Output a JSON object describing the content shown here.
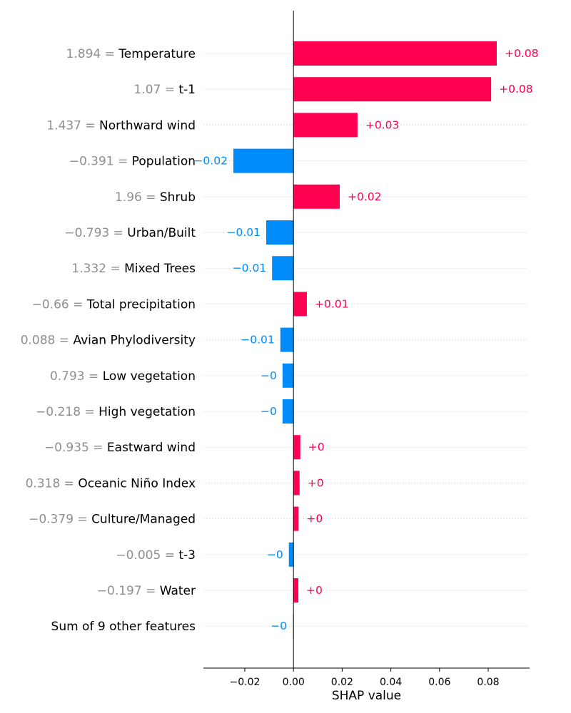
{
  "chart_data": {
    "type": "bar",
    "orientation": "horizontal",
    "xlabel": "SHAP value",
    "xlim": [
      -0.037,
      0.097
    ],
    "xticks": [
      -0.02,
      0.0,
      0.02,
      0.04,
      0.06,
      0.08
    ],
    "xtick_labels": [
      "−0.02",
      "0.00",
      "0.02",
      "0.04",
      "0.06",
      "0.08"
    ],
    "grid": false,
    "colors": {
      "positive": "#ff0051",
      "negative": "#008bfb",
      "neutral": "#cccccc",
      "feature_value_text": "#8f8f8f",
      "zero_line": "#000000",
      "row_guides": "#cccccc"
    },
    "features": [
      {
        "value_text": "1.894",
        "name": "Temperature",
        "shap": 0.0835,
        "label": "+0.08",
        "sign": "positive"
      },
      {
        "value_text": "1.07",
        "name": "t-1",
        "shap": 0.0812,
        "label": "+0.08",
        "sign": "positive"
      },
      {
        "value_text": "1.437",
        "name": "Northward wind",
        "shap": 0.0263,
        "label": "+0.03",
        "sign": "positive"
      },
      {
        "value_text": "−0.391",
        "name": "Population",
        "shap": -0.0247,
        "label": "−0.02",
        "sign": "negative"
      },
      {
        "value_text": "1.96",
        "name": "Shrub",
        "shap": 0.019,
        "label": "+0.02",
        "sign": "positive"
      },
      {
        "value_text": "−0.793",
        "name": "Urban/Built",
        "shap": -0.0112,
        "label": "−0.01",
        "sign": "negative"
      },
      {
        "value_text": "1.332",
        "name": "Mixed Trees",
        "shap": -0.0088,
        "label": "−0.01",
        "sign": "negative"
      },
      {
        "value_text": "−0.66",
        "name": "Total precipitation",
        "shap": 0.0055,
        "label": "+0.01",
        "sign": "positive"
      },
      {
        "value_text": "0.088",
        "name": "Avian Phylodiversity",
        "shap": -0.0054,
        "label": "−0.01",
        "sign": "negative"
      },
      {
        "value_text": "0.793",
        "name": "Low vegetation",
        "shap": -0.0045,
        "label": "−0",
        "sign": "negative"
      },
      {
        "value_text": "−0.218",
        "name": "High vegetation",
        "shap": -0.0045,
        "label": "−0",
        "sign": "negative"
      },
      {
        "value_text": "−0.935",
        "name": "Eastward wind",
        "shap": 0.0028,
        "label": "+0",
        "sign": "positive"
      },
      {
        "value_text": "0.318",
        "name": "Oceanic Niño Index",
        "shap": 0.0025,
        "label": "+0",
        "sign": "positive"
      },
      {
        "value_text": "−0.379",
        "name": "Culture/Managed",
        "shap": 0.0021,
        "label": "+0",
        "sign": "positive"
      },
      {
        "value_text": "−0.005",
        "name": "t-3",
        "shap": -0.0019,
        "label": "−0",
        "sign": "negative"
      },
      {
        "value_text": "−0.197",
        "name": "Water",
        "shap": 0.002,
        "label": "+0",
        "sign": "positive"
      },
      {
        "value_text": "",
        "name": "Sum of 9 other features",
        "shap": -0.0003,
        "label": "−0",
        "sign": "neutral"
      }
    ]
  }
}
